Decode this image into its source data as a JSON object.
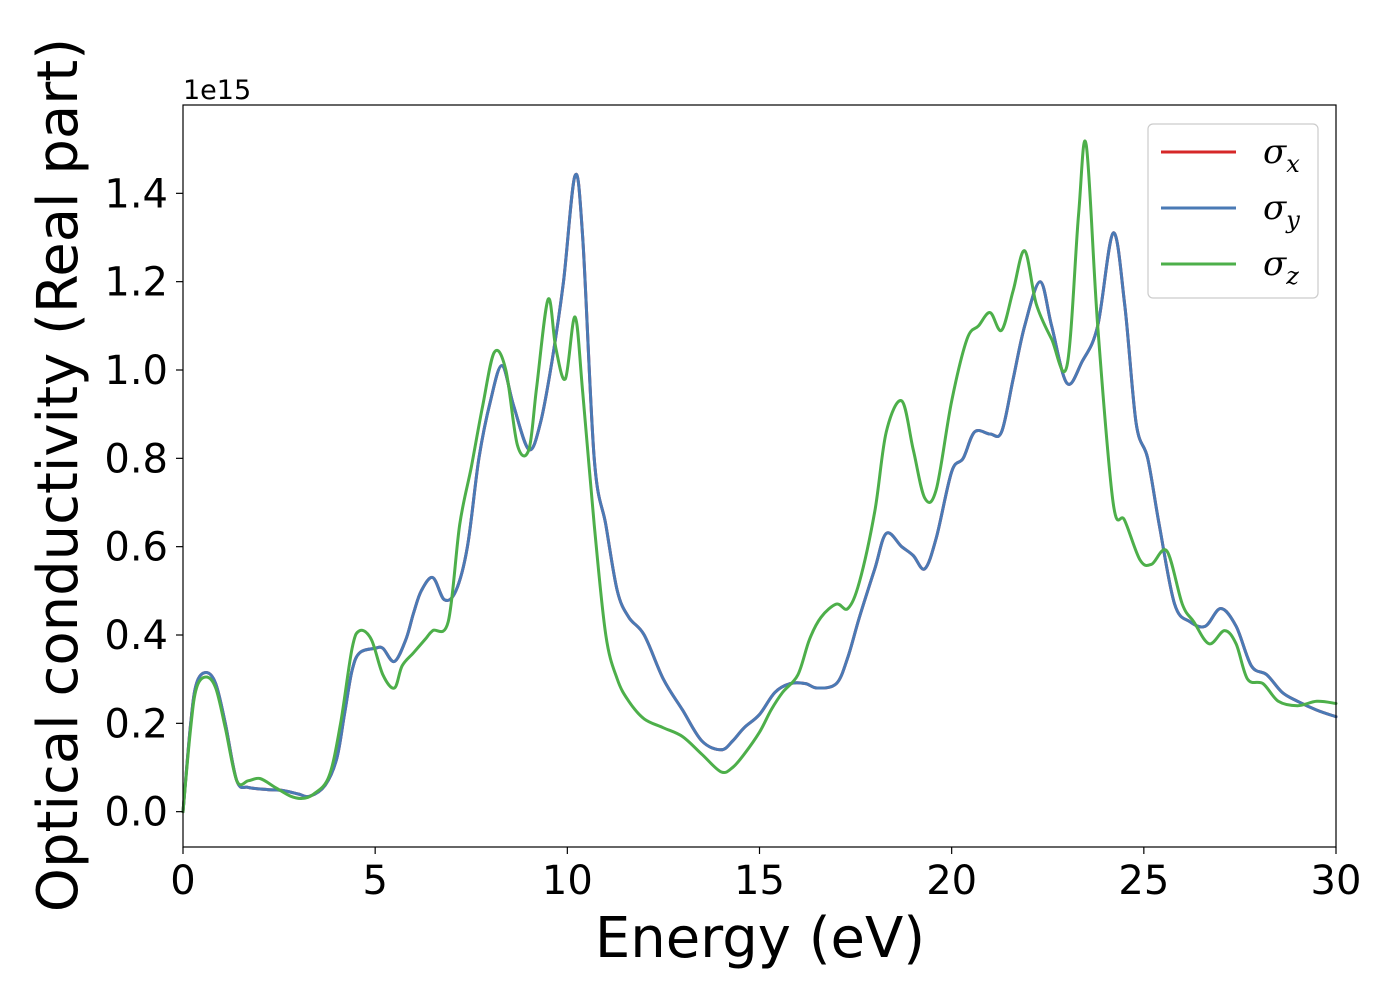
{
  "chart_data": {
    "type": "line",
    "xlabel": "Energy (eV)",
    "ylabel": "Optical conductivity (Real part)",
    "y_offset_label": "1e15",
    "xlim": [
      0,
      30
    ],
    "ylim": [
      -0.08,
      1.6
    ],
    "x_ticks": [
      0,
      5,
      10,
      15,
      20,
      25,
      30
    ],
    "x_tick_labels": [
      "0",
      "5",
      "10",
      "15",
      "20",
      "25",
      "30"
    ],
    "y_ticks": [
      0.0,
      0.2,
      0.4,
      0.6,
      0.8,
      1.0,
      1.2,
      1.4
    ],
    "y_tick_labels": [
      "0.0",
      "0.2",
      "0.4",
      "0.6",
      "0.8",
      "1.0",
      "1.2",
      "1.4"
    ],
    "grid": false,
    "legend_position": "top-right",
    "series": [
      {
        "name": "σx",
        "symbol": "σ",
        "subscript": "x",
        "color": "#d62728",
        "points": [
          [
            0,
            0
          ],
          [
            0.2,
            0.2
          ],
          [
            0.35,
            0.29
          ],
          [
            0.6,
            0.315
          ],
          [
            0.85,
            0.29
          ],
          [
            1.1,
            0.2
          ],
          [
            1.4,
            0.07
          ],
          [
            1.7,
            0.055
          ],
          [
            2.2,
            0.05
          ],
          [
            2.6,
            0.048
          ],
          [
            3.0,
            0.04
          ],
          [
            3.3,
            0.035
          ],
          [
            3.7,
            0.06
          ],
          [
            4.0,
            0.12
          ],
          [
            4.2,
            0.22
          ],
          [
            4.4,
            0.32
          ],
          [
            4.6,
            0.36
          ],
          [
            5.0,
            0.37
          ],
          [
            5.2,
            0.37
          ],
          [
            5.5,
            0.34
          ],
          [
            5.8,
            0.39
          ],
          [
            6.0,
            0.45
          ],
          [
            6.2,
            0.5
          ],
          [
            6.5,
            0.53
          ],
          [
            6.8,
            0.48
          ],
          [
            7.1,
            0.5
          ],
          [
            7.4,
            0.6
          ],
          [
            7.7,
            0.8
          ],
          [
            8.0,
            0.93
          ],
          [
            8.3,
            1.01
          ],
          [
            8.6,
            0.92
          ],
          [
            9.0,
            0.82
          ],
          [
            9.3,
            0.88
          ],
          [
            9.6,
            1.02
          ],
          [
            9.9,
            1.2
          ],
          [
            10.2,
            1.44
          ],
          [
            10.4,
            1.3
          ],
          [
            10.7,
            0.8
          ],
          [
            11.0,
            0.65
          ],
          [
            11.3,
            0.5
          ],
          [
            11.6,
            0.44
          ],
          [
            12.0,
            0.4
          ],
          [
            12.5,
            0.3
          ],
          [
            13.0,
            0.23
          ],
          [
            13.5,
            0.16
          ],
          [
            14.0,
            0.14
          ],
          [
            14.3,
            0.16
          ],
          [
            14.6,
            0.19
          ],
          [
            15.0,
            0.22
          ],
          [
            15.4,
            0.27
          ],
          [
            15.8,
            0.29
          ],
          [
            16.2,
            0.29
          ],
          [
            16.5,
            0.28
          ],
          [
            17.0,
            0.29
          ],
          [
            17.3,
            0.35
          ],
          [
            17.6,
            0.44
          ],
          [
            18.0,
            0.55
          ],
          [
            18.3,
            0.63
          ],
          [
            18.7,
            0.6
          ],
          [
            19.0,
            0.58
          ],
          [
            19.3,
            0.55
          ],
          [
            19.6,
            0.62
          ],
          [
            20.0,
            0.77
          ],
          [
            20.3,
            0.8
          ],
          [
            20.6,
            0.86
          ],
          [
            21.0,
            0.855
          ],
          [
            21.3,
            0.86
          ],
          [
            21.6,
            0.98
          ],
          [
            21.9,
            1.1
          ],
          [
            22.3,
            1.2
          ],
          [
            22.6,
            1.1
          ],
          [
            23.0,
            0.97
          ],
          [
            23.4,
            1.02
          ],
          [
            23.8,
            1.1
          ],
          [
            24.2,
            1.31
          ],
          [
            24.5,
            1.15
          ],
          [
            24.8,
            0.88
          ],
          [
            25.1,
            0.8
          ],
          [
            25.4,
            0.65
          ],
          [
            25.8,
            0.47
          ],
          [
            26.2,
            0.43
          ],
          [
            26.6,
            0.42
          ],
          [
            27.0,
            0.46
          ],
          [
            27.4,
            0.42
          ],
          [
            27.8,
            0.33
          ],
          [
            28.2,
            0.31
          ],
          [
            28.6,
            0.27
          ],
          [
            29.0,
            0.25
          ],
          [
            29.5,
            0.23
          ],
          [
            30.0,
            0.215
          ]
        ]
      },
      {
        "name": "σy",
        "symbol": "σ",
        "subscript": "y",
        "color": "#4a7ab5",
        "points": [
          [
            0,
            0
          ],
          [
            0.2,
            0.2
          ],
          [
            0.35,
            0.29
          ],
          [
            0.6,
            0.315
          ],
          [
            0.85,
            0.29
          ],
          [
            1.1,
            0.2
          ],
          [
            1.4,
            0.07
          ],
          [
            1.7,
            0.055
          ],
          [
            2.2,
            0.05
          ],
          [
            2.6,
            0.048
          ],
          [
            3.0,
            0.04
          ],
          [
            3.3,
            0.035
          ],
          [
            3.7,
            0.06
          ],
          [
            4.0,
            0.12
          ],
          [
            4.2,
            0.22
          ],
          [
            4.4,
            0.32
          ],
          [
            4.6,
            0.36
          ],
          [
            5.0,
            0.37
          ],
          [
            5.2,
            0.37
          ],
          [
            5.5,
            0.34
          ],
          [
            5.8,
            0.39
          ],
          [
            6.0,
            0.45
          ],
          [
            6.2,
            0.5
          ],
          [
            6.5,
            0.53
          ],
          [
            6.8,
            0.48
          ],
          [
            7.1,
            0.5
          ],
          [
            7.4,
            0.6
          ],
          [
            7.7,
            0.8
          ],
          [
            8.0,
            0.93
          ],
          [
            8.3,
            1.01
          ],
          [
            8.6,
            0.92
          ],
          [
            9.0,
            0.82
          ],
          [
            9.3,
            0.88
          ],
          [
            9.6,
            1.02
          ],
          [
            9.9,
            1.2
          ],
          [
            10.2,
            1.44
          ],
          [
            10.4,
            1.3
          ],
          [
            10.7,
            0.8
          ],
          [
            11.0,
            0.65
          ],
          [
            11.3,
            0.5
          ],
          [
            11.6,
            0.44
          ],
          [
            12.0,
            0.4
          ],
          [
            12.5,
            0.3
          ],
          [
            13.0,
            0.23
          ],
          [
            13.5,
            0.16
          ],
          [
            14.0,
            0.14
          ],
          [
            14.3,
            0.16
          ],
          [
            14.6,
            0.19
          ],
          [
            15.0,
            0.22
          ],
          [
            15.4,
            0.27
          ],
          [
            15.8,
            0.29
          ],
          [
            16.2,
            0.29
          ],
          [
            16.5,
            0.28
          ],
          [
            17.0,
            0.29
          ],
          [
            17.3,
            0.35
          ],
          [
            17.6,
            0.44
          ],
          [
            18.0,
            0.55
          ],
          [
            18.3,
            0.63
          ],
          [
            18.7,
            0.6
          ],
          [
            19.0,
            0.58
          ],
          [
            19.3,
            0.55
          ],
          [
            19.6,
            0.62
          ],
          [
            20.0,
            0.77
          ],
          [
            20.3,
            0.8
          ],
          [
            20.6,
            0.86
          ],
          [
            21.0,
            0.855
          ],
          [
            21.3,
            0.86
          ],
          [
            21.6,
            0.98
          ],
          [
            21.9,
            1.1
          ],
          [
            22.3,
            1.2
          ],
          [
            22.6,
            1.1
          ],
          [
            23.0,
            0.97
          ],
          [
            23.4,
            1.02
          ],
          [
            23.8,
            1.1
          ],
          [
            24.2,
            1.31
          ],
          [
            24.5,
            1.15
          ],
          [
            24.8,
            0.88
          ],
          [
            25.1,
            0.8
          ],
          [
            25.4,
            0.65
          ],
          [
            25.8,
            0.47
          ],
          [
            26.2,
            0.43
          ],
          [
            26.6,
            0.42
          ],
          [
            27.0,
            0.46
          ],
          [
            27.4,
            0.42
          ],
          [
            27.8,
            0.33
          ],
          [
            28.2,
            0.31
          ],
          [
            28.6,
            0.27
          ],
          [
            29.0,
            0.25
          ],
          [
            29.5,
            0.23
          ],
          [
            30.0,
            0.215
          ]
        ]
      },
      {
        "name": "σz",
        "symbol": "σ",
        "subscript": "z",
        "color": "#4daf4a",
        "points": [
          [
            0,
            0
          ],
          [
            0.2,
            0.19
          ],
          [
            0.35,
            0.28
          ],
          [
            0.6,
            0.305
          ],
          [
            0.85,
            0.28
          ],
          [
            1.1,
            0.19
          ],
          [
            1.4,
            0.07
          ],
          [
            1.7,
            0.07
          ],
          [
            2.0,
            0.075
          ],
          [
            2.4,
            0.055
          ],
          [
            2.8,
            0.035
          ],
          [
            3.1,
            0.03
          ],
          [
            3.4,
            0.04
          ],
          [
            3.8,
            0.08
          ],
          [
            4.1,
            0.2
          ],
          [
            4.4,
            0.37
          ],
          [
            4.6,
            0.41
          ],
          [
            4.9,
            0.39
          ],
          [
            5.2,
            0.31
          ],
          [
            5.5,
            0.28
          ],
          [
            5.7,
            0.33
          ],
          [
            6.0,
            0.36
          ],
          [
            6.3,
            0.39
          ],
          [
            6.5,
            0.41
          ],
          [
            6.9,
            0.43
          ],
          [
            7.2,
            0.65
          ],
          [
            7.5,
            0.78
          ],
          [
            7.8,
            0.92
          ],
          [
            8.1,
            1.04
          ],
          [
            8.4,
            1.0
          ],
          [
            8.7,
            0.83
          ],
          [
            9.0,
            0.82
          ],
          [
            9.2,
            0.96
          ],
          [
            9.5,
            1.16
          ],
          [
            9.7,
            1.05
          ],
          [
            9.95,
            0.98
          ],
          [
            10.2,
            1.12
          ],
          [
            10.4,
            0.95
          ],
          [
            10.7,
            0.65
          ],
          [
            11.0,
            0.4
          ],
          [
            11.3,
            0.3
          ],
          [
            11.6,
            0.25
          ],
          [
            12.0,
            0.21
          ],
          [
            12.5,
            0.19
          ],
          [
            13.0,
            0.17
          ],
          [
            13.5,
            0.13
          ],
          [
            14.0,
            0.09
          ],
          [
            14.3,
            0.1
          ],
          [
            14.6,
            0.13
          ],
          [
            15.0,
            0.18
          ],
          [
            15.3,
            0.23
          ],
          [
            15.6,
            0.27
          ],
          [
            16.0,
            0.31
          ],
          [
            16.3,
            0.39
          ],
          [
            16.6,
            0.44
          ],
          [
            17.0,
            0.47
          ],
          [
            17.3,
            0.46
          ],
          [
            17.6,
            0.52
          ],
          [
            18.0,
            0.68
          ],
          [
            18.3,
            0.86
          ],
          [
            18.7,
            0.93
          ],
          [
            19.0,
            0.82
          ],
          [
            19.3,
            0.71
          ],
          [
            19.6,
            0.73
          ],
          [
            20.0,
            0.93
          ],
          [
            20.4,
            1.07
          ],
          [
            20.7,
            1.1
          ],
          [
            21.0,
            1.13
          ],
          [
            21.3,
            1.09
          ],
          [
            21.6,
            1.18
          ],
          [
            21.9,
            1.27
          ],
          [
            22.2,
            1.15
          ],
          [
            22.6,
            1.07
          ],
          [
            23.0,
            1.01
          ],
          [
            23.3,
            1.35
          ],
          [
            23.5,
            1.51
          ],
          [
            23.8,
            1.1
          ],
          [
            24.2,
            0.7
          ],
          [
            24.5,
            0.66
          ],
          [
            24.9,
            0.57
          ],
          [
            25.2,
            0.56
          ],
          [
            25.6,
            0.59
          ],
          [
            26.0,
            0.47
          ],
          [
            26.3,
            0.43
          ],
          [
            26.7,
            0.38
          ],
          [
            27.1,
            0.41
          ],
          [
            27.4,
            0.38
          ],
          [
            27.7,
            0.3
          ],
          [
            28.1,
            0.29
          ],
          [
            28.5,
            0.25
          ],
          [
            29.0,
            0.24
          ],
          [
            29.5,
            0.25
          ],
          [
            30.0,
            0.245
          ]
        ]
      }
    ]
  }
}
